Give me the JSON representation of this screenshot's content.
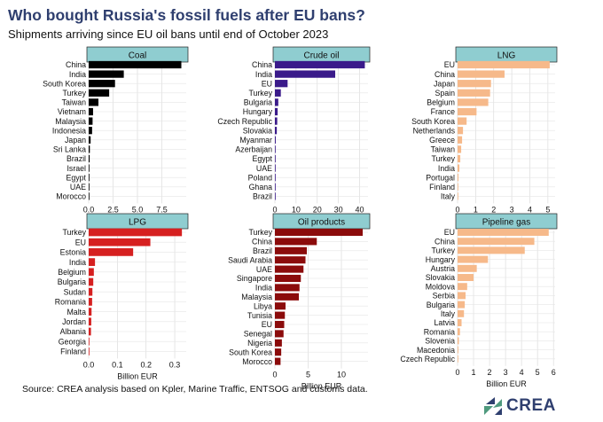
{
  "header": {
    "title": "Who bought Russia's fossil fuels after EU bans?",
    "subtitle": "Shipments arriving since EU oil bans until end of October 2023"
  },
  "footer": {
    "source": "Source: CREA analysis based on Kpler, Marine Traffic, ENTSOG and customs data.",
    "logo_text": "CREA"
  },
  "colors": {
    "panel_header_bg": "#8fcdd0",
    "title": "#2f3f6f",
    "logo_green": "#4f9a7e"
  },
  "chart_data": [
    {
      "type": "bar",
      "orientation": "horizontal",
      "title": "Coal",
      "color": "#000000",
      "categories": [
        "China",
        "India",
        "South Korea",
        "Turkey",
        "Taiwan",
        "Vietnam",
        "Malaysia",
        "Indonesia",
        "Japan",
        "Sri Lanka",
        "Brazil",
        "Israel",
        "Egypt",
        "UAE",
        "Morocco"
      ],
      "values": [
        9.5,
        3.6,
        2.7,
        2.1,
        1.0,
        0.45,
        0.4,
        0.35,
        0.2,
        0.12,
        0.1,
        0.05,
        0.05,
        0.03,
        0.02
      ],
      "xlabel": "Billion EUR",
      "xlim": [
        0,
        10.0
      ],
      "ticks": [
        0,
        2.5,
        5.0,
        7.5
      ],
      "tick_labels": [
        "0.0",
        "2.5",
        "5.0",
        "7.5"
      ]
    },
    {
      "type": "bar",
      "orientation": "horizontal",
      "title": "Crude oil",
      "color": "#3a1a8a",
      "categories": [
        "China",
        "India",
        "EU",
        "Turkey",
        "Bulgaria",
        "Hungary",
        "Czech Republic",
        "Slovakia",
        "Myanmar",
        "Azerbaijan",
        "Egypt",
        "UAE",
        "Poland",
        "Ghana",
        "Brazil"
      ],
      "values": [
        42.5,
        28.5,
        6.0,
        2.8,
        1.6,
        1.3,
        1.1,
        0.9,
        0.4,
        0.3,
        0.2,
        0.2,
        0.15,
        0.1,
        0.05
      ],
      "xlabel": "Billion EUR",
      "xlim": [
        0,
        44
      ],
      "ticks": [
        0,
        10,
        20,
        30,
        40
      ],
      "tick_labels": [
        "0",
        "10",
        "20",
        "30",
        "40"
      ]
    },
    {
      "type": "bar",
      "orientation": "horizontal",
      "title": "LNG",
      "color": "#f6b98a",
      "categories": [
        "EU",
        "China",
        "Japan",
        "Spain",
        "Belgium",
        "France",
        "South Korea",
        "Netherlands",
        "Greece",
        "Taiwan",
        "Turkey",
        "India",
        "Portugal",
        "Finland",
        "Italy"
      ],
      "values": [
        5.1,
        2.6,
        1.85,
        1.8,
        1.7,
        1.05,
        0.5,
        0.3,
        0.25,
        0.2,
        0.15,
        0.1,
        0.05,
        0.03,
        0.02
      ],
      "xlabel": "Billion EUR",
      "xlim": [
        0,
        5.4
      ],
      "ticks": [
        0,
        1,
        2,
        3,
        4,
        5
      ],
      "tick_labels": [
        "0",
        "1",
        "2",
        "3",
        "4",
        "5"
      ]
    },
    {
      "type": "bar",
      "orientation": "horizontal",
      "title": "LPG",
      "color": "#d62020",
      "categories": [
        "Turkey",
        "EU",
        "Estonia",
        "India",
        "Belgium",
        "Bulgaria",
        "Sudan",
        "Romania",
        "Malta",
        "Jordan",
        "Albania",
        "Georgia",
        "Finland"
      ],
      "values": [
        0.325,
        0.215,
        0.155,
        0.022,
        0.018,
        0.016,
        0.013,
        0.012,
        0.01,
        0.009,
        0.008,
        0.002,
        0.001
      ],
      "xlabel": "Billion EUR",
      "xlim": [
        0,
        0.34
      ],
      "ticks": [
        0,
        0.1,
        0.2,
        0.3
      ],
      "tick_labels": [
        "0.0",
        "0.1",
        "0.2",
        "0.3"
      ]
    },
    {
      "type": "bar",
      "orientation": "horizontal",
      "title": "Oil products",
      "color": "#8b0b0b",
      "categories": [
        "Turkey",
        "China",
        "Brazil",
        "Saudi Arabia",
        "UAE",
        "Singapore",
        "India",
        "Malaysia",
        "Libya",
        "Tunisia",
        "EU",
        "Senegal",
        "Nigeria",
        "South Korea",
        "Morocco"
      ],
      "values": [
        13.2,
        6.3,
        4.8,
        4.6,
        4.3,
        3.9,
        3.7,
        3.6,
        1.6,
        1.5,
        1.4,
        1.3,
        1.05,
        0.95,
        0.85
      ],
      "xlabel": "Billion EUR",
      "xlim": [
        0,
        14
      ],
      "ticks": [
        0,
        5,
        10
      ],
      "tick_labels": [
        "0",
        "5",
        "10"
      ]
    },
    {
      "type": "bar",
      "orientation": "horizontal",
      "title": "Pipeline gas",
      "color": "#f6b98a",
      "categories": [
        "EU",
        "China",
        "Turkey",
        "Hungary",
        "Austria",
        "Slovakia",
        "Moldova",
        "Serbia",
        "Bulgaria",
        "Italy",
        "Latvia",
        "Romania",
        "Slovenia",
        "Macedonia",
        "Czech Republic"
      ],
      "values": [
        5.7,
        4.8,
        4.2,
        1.9,
        1.2,
        1.0,
        0.6,
        0.5,
        0.45,
        0.4,
        0.25,
        0.15,
        0.08,
        0.05,
        0.02
      ],
      "xlabel": "Billion EUR",
      "xlim": [
        0,
        6.1
      ],
      "ticks": [
        0,
        1,
        2,
        3,
        4,
        5,
        6
      ],
      "tick_labels": [
        "0",
        "1",
        "2",
        "3",
        "4",
        "5",
        "6"
      ]
    }
  ]
}
